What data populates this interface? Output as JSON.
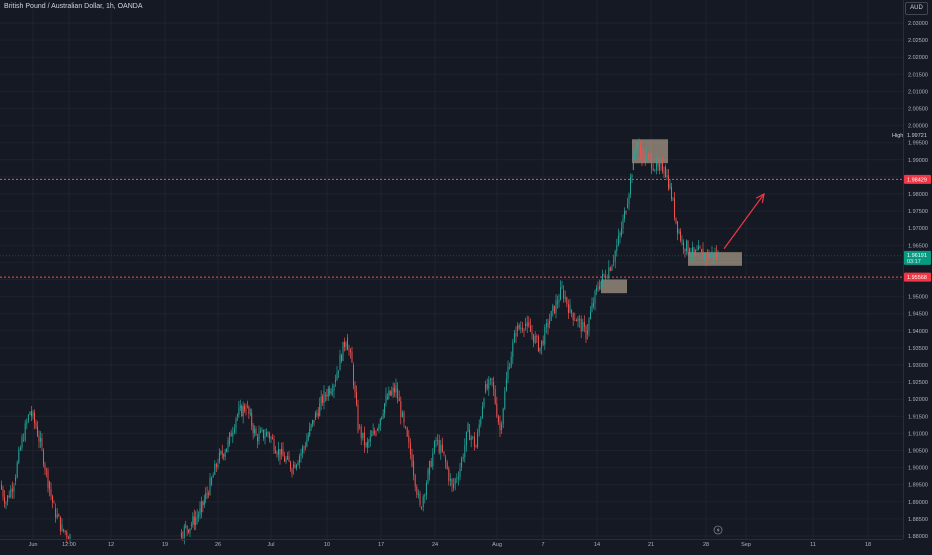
{
  "header": {
    "symbol_title": "British Pound / Australian Dollar, 1h, OANDA",
    "currency": "AUD"
  },
  "colors": {
    "background": "#151924",
    "grid": "#1e222d",
    "up": "#26a69a",
    "down": "#ef5350",
    "level_line": "#ef5350",
    "box": "#d9c3a6",
    "arrow": "#f23645",
    "current_tag": "#089981",
    "level_tag": "#f23645"
  },
  "icons": {
    "replay": "lightning-bolt-icon"
  },
  "price_tags": {
    "high_label": "High",
    "high_value": "1.99721",
    "upper_level": "1.98429",
    "current_price": "1.96191",
    "current_countdown": "03:17",
    "lower_level": "1.95568"
  },
  "chart_data": {
    "type": "candlestick",
    "title": "British Pound / Australian Dollar, 1h, OANDA",
    "xlabel": "",
    "ylabel": "",
    "ylim": [
      1.88,
      2.035
    ],
    "y_ticks": [
      "2.03000",
      "2.02500",
      "2.02000",
      "2.01500",
      "2.01000",
      "2.00500",
      "2.00000",
      "1.99500",
      "1.99000",
      "1.98500",
      "1.98000",
      "1.97500",
      "1.97000",
      "1.96500",
      "1.96000",
      "1.95500",
      "1.95000",
      "1.94500",
      "1.94000",
      "1.93500",
      "1.93000",
      "1.92500",
      "1.92000",
      "1.91500",
      "1.91000",
      "1.90500",
      "1.90000",
      "1.89500",
      "1.89000",
      "1.88500",
      "1.88000"
    ],
    "x_ticks": [
      "Jun",
      "12:00",
      "12",
      "19",
      "26",
      "Jul",
      "10",
      "17",
      "24",
      "Aug",
      "7",
      "14",
      "21",
      "28",
      "Sep",
      "11",
      "18"
    ],
    "price_path": [
      {
        "x": 0,
        "y": 1.895
      },
      {
        "x": 6,
        "y": 1.89
      },
      {
        "x": 14,
        "y": 1.896
      },
      {
        "x": 22,
        "y": 1.908
      },
      {
        "x": 30,
        "y": 1.9165
      },
      {
        "x": 36,
        "y": 1.912
      },
      {
        "x": 42,
        "y": 1.905
      },
      {
        "x": 48,
        "y": 1.896
      },
      {
        "x": 54,
        "y": 1.888
      },
      {
        "x": 62,
        "y": 1.882
      },
      {
        "x": 70,
        "y": 1.88
      },
      {
        "x": 180,
        "y": 1.881
      },
      {
        "x": 190,
        "y": 1.883
      },
      {
        "x": 200,
        "y": 1.887
      },
      {
        "x": 210,
        "y": 1.895
      },
      {
        "x": 218,
        "y": 1.902
      },
      {
        "x": 228,
        "y": 1.907
      },
      {
        "x": 236,
        "y": 1.915
      },
      {
        "x": 246,
        "y": 1.918
      },
      {
        "x": 256,
        "y": 1.909
      },
      {
        "x": 268,
        "y": 1.91
      },
      {
        "x": 280,
        "y": 1.904
      },
      {
        "x": 292,
        "y": 1.9
      },
      {
        "x": 304,
        "y": 1.906
      },
      {
        "x": 314,
        "y": 1.914
      },
      {
        "x": 324,
        "y": 1.921
      },
      {
        "x": 334,
        "y": 1.925
      },
      {
        "x": 346,
        "y": 1.938
      },
      {
        "x": 352,
        "y": 1.93
      },
      {
        "x": 358,
        "y": 1.912
      },
      {
        "x": 366,
        "y": 1.906
      },
      {
        "x": 376,
        "y": 1.911
      },
      {
        "x": 386,
        "y": 1.92
      },
      {
        "x": 396,
        "y": 1.923
      },
      {
        "x": 404,
        "y": 1.912
      },
      {
        "x": 412,
        "y": 1.902
      },
      {
        "x": 420,
        "y": 1.888
      },
      {
        "x": 428,
        "y": 1.898
      },
      {
        "x": 436,
        "y": 1.908
      },
      {
        "x": 444,
        "y": 1.903
      },
      {
        "x": 452,
        "y": 1.894
      },
      {
        "x": 460,
        "y": 1.9
      },
      {
        "x": 468,
        "y": 1.911
      },
      {
        "x": 476,
        "y": 1.906
      },
      {
        "x": 484,
        "y": 1.922
      },
      {
        "x": 492,
        "y": 1.925
      },
      {
        "x": 500,
        "y": 1.911
      },
      {
        "x": 508,
        "y": 1.929
      },
      {
        "x": 516,
        "y": 1.94
      },
      {
        "x": 524,
        "y": 1.942
      },
      {
        "x": 532,
        "y": 1.939
      },
      {
        "x": 540,
        "y": 1.935
      },
      {
        "x": 548,
        "y": 1.942
      },
      {
        "x": 556,
        "y": 1.948
      },
      {
        "x": 562,
        "y": 1.952
      },
      {
        "x": 570,
        "y": 1.946
      },
      {
        "x": 578,
        "y": 1.943
      },
      {
        "x": 586,
        "y": 1.939
      },
      {
        "x": 592,
        "y": 1.947
      },
      {
        "x": 598,
        "y": 1.953
      },
      {
        "x": 604,
        "y": 1.956
      },
      {
        "x": 612,
        "y": 1.96
      },
      {
        "x": 620,
        "y": 1.968
      },
      {
        "x": 626,
        "y": 1.976
      },
      {
        "x": 632,
        "y": 1.987
      },
      {
        "x": 636,
        "y": 1.995
      },
      {
        "x": 642,
        "y": 1.991
      },
      {
        "x": 650,
        "y": 1.99
      },
      {
        "x": 658,
        "y": 1.987
      },
      {
        "x": 664,
        "y": 1.988
      },
      {
        "x": 670,
        "y": 1.982
      },
      {
        "x": 676,
        "y": 1.972
      },
      {
        "x": 682,
        "y": 1.966
      },
      {
        "x": 688,
        "y": 1.964
      },
      {
        "x": 694,
        "y": 1.962
      },
      {
        "x": 700,
        "y": 1.963
      },
      {
        "x": 706,
        "y": 1.962
      },
      {
        "x": 712,
        "y": 1.9625
      },
      {
        "x": 718,
        "y": 1.9619
      }
    ],
    "x_axis_note": "x is the position along the time axis (0 = left edge of the plotted history), sampled from the price trace",
    "levels": [
      1.98429,
      1.95568
    ],
    "current_price": 1.96191,
    "high": 1.99721,
    "zones": [
      {
        "from_x": 632,
        "to_x": 668,
        "y_low": 1.989,
        "y_high": 1.996
      },
      {
        "from_x": 601,
        "to_x": 627,
        "y_low": 1.951,
        "y_high": 1.955
      },
      {
        "from_x": 688,
        "to_x": 742,
        "y_low": 1.959,
        "y_high": 1.963
      }
    ],
    "arrow": {
      "from_x": 724,
      "from_y": 1.964,
      "to_x": 764,
      "to_y": 1.98
    },
    "grid": true,
    "legend": "none"
  }
}
